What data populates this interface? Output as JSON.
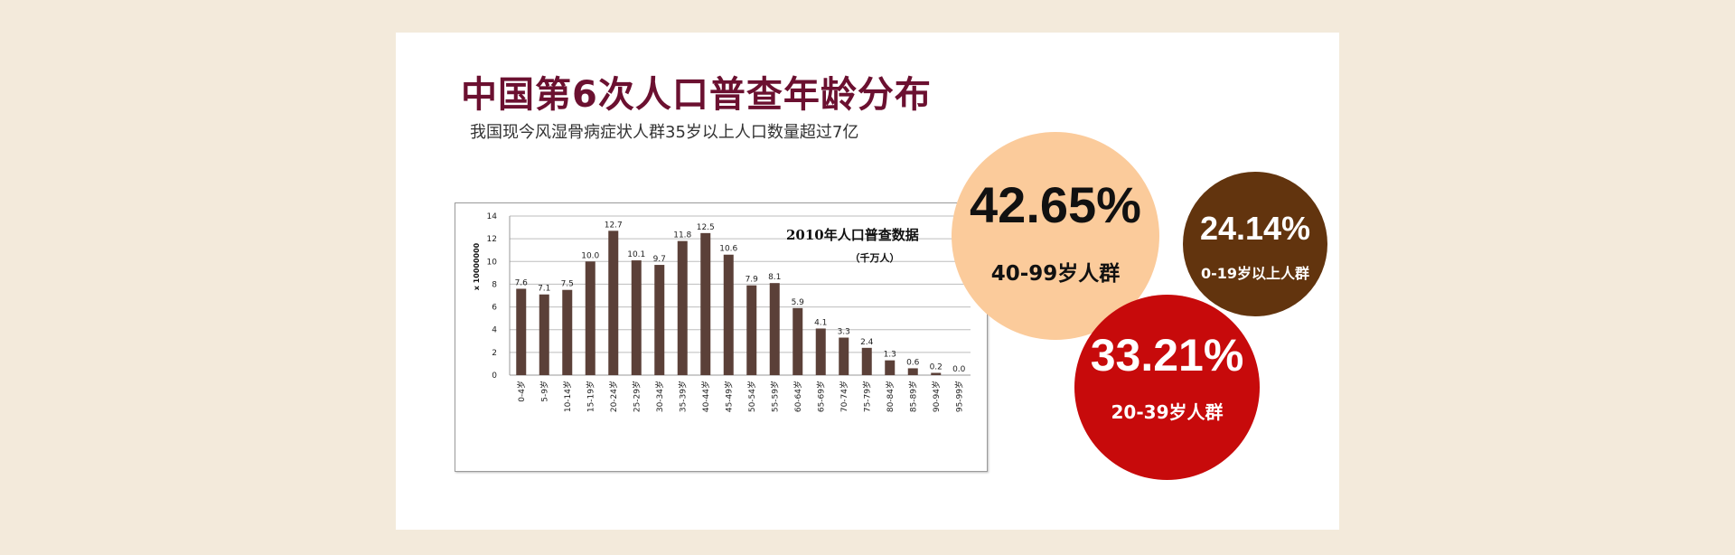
{
  "page": {
    "title": "中国第6次人口普查年龄分布",
    "subtitle": "我国现今风湿骨病症状人群35岁以上人口数量超过7亿"
  },
  "chart_data": {
    "type": "bar",
    "title": "2010年人口普查数据",
    "subtitle": "（千万人）",
    "ylabel": "x 10000000",
    "xlabel": "",
    "ylim": [
      0,
      14
    ],
    "yticks": [
      0,
      2,
      4,
      6,
      8,
      10,
      12,
      14
    ],
    "grid": true,
    "color": "#5b4038",
    "categories": [
      "0-4岁",
      "5-9岁",
      "10-14岁",
      "15-19岁",
      "20-24岁",
      "25-29岁",
      "30-34岁",
      "35-39岁",
      "40-44岁",
      "45-49岁",
      "50-54岁",
      "55-59岁",
      "60-64岁",
      "65-69岁",
      "70-74岁",
      "75-79岁",
      "80-84岁",
      "85-89岁",
      "90-94岁",
      "95-99岁"
    ],
    "values": [
      7.6,
      7.1,
      7.5,
      10.0,
      12.7,
      10.1,
      9.7,
      11.8,
      12.5,
      10.6,
      7.9,
      8.1,
      5.9,
      4.1,
      3.3,
      2.4,
      1.3,
      0.6,
      0.2,
      0.0
    ],
    "value_labels": [
      "7.6",
      "7.1",
      "7.5",
      "10.0",
      "12.7",
      "10.1",
      "9.7",
      "11.8",
      "12.5",
      "10.6",
      "7.9",
      "8.1",
      "5.9",
      "4.1",
      "3.3",
      "2.4",
      "1.3",
      "0.6",
      "0.2",
      "0.0"
    ]
  },
  "bubbles": [
    {
      "percent": "42.65%",
      "label": "40-99岁人群",
      "color": "#fbcb9b"
    },
    {
      "percent": "24.14%",
      "label": "0-19岁以上人群",
      "color": "#62340e"
    },
    {
      "percent": "33.21%",
      "label": "20-39岁人群",
      "color": "#c70a0b"
    }
  ]
}
